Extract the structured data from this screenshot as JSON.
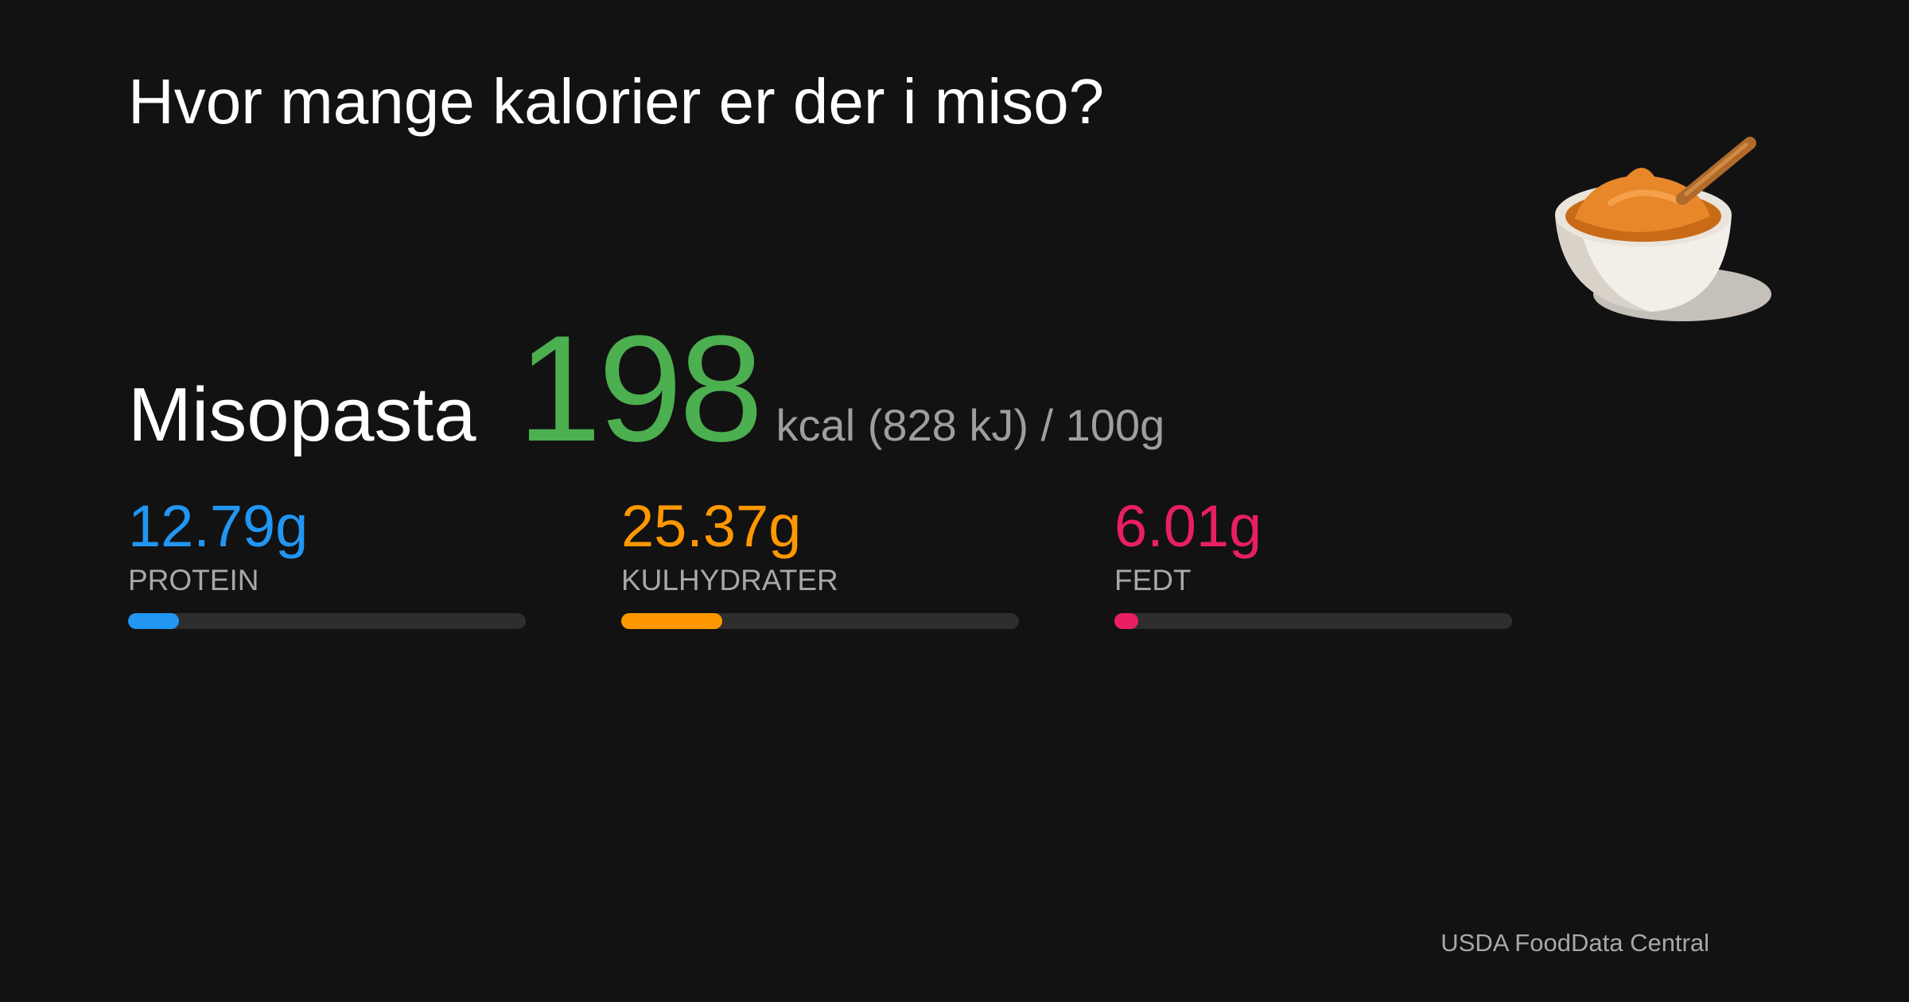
{
  "title": "Hvor mange kalorier er der i miso?",
  "food": {
    "name": "Misopasta",
    "kcal": 198,
    "unit": "kcal (828 kJ) / 100g"
  },
  "macros": {
    "xlim": [
      0,
      100
    ],
    "items": [
      {
        "value": 12.79,
        "label": "12.79g",
        "name": "PROTEIN",
        "color": "#2196f3"
      },
      {
        "value": 25.37,
        "label": "25.37g",
        "name": "KULHYDRATER",
        "color": "#ff9800"
      },
      {
        "value": 6.01,
        "label": "6.01g",
        "name": "FEDT",
        "color": "#e91e63"
      }
    ]
  },
  "source": "USDA FoodData Central"
}
